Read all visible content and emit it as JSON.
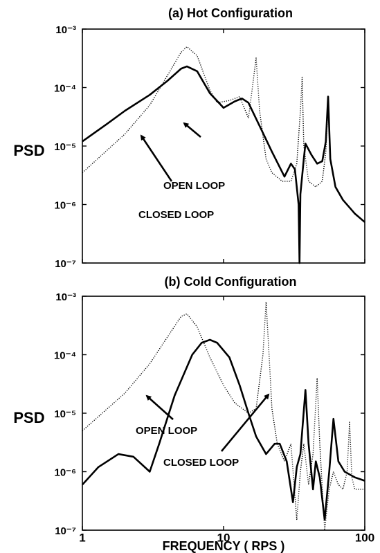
{
  "chart_data": [
    {
      "type": "line",
      "title": "(a)  Hot Configuration",
      "y_label": "PSD",
      "xlim": [
        1,
        100
      ],
      "ylim": [
        1e-07,
        0.001
      ],
      "xscale": "log",
      "yscale": "log",
      "xticks": [
        1,
        10,
        100
      ],
      "xtick_labels": false,
      "yticks": [
        {
          "value": 0.001,
          "label": "10⁻³"
        },
        {
          "value": 0.0001,
          "label": "10⁻⁴"
        },
        {
          "value": 1e-05,
          "label": "10⁻⁵"
        },
        {
          "value": 1e-06,
          "label": "10⁻⁶"
        },
        {
          "value": 1e-07,
          "label": "10⁻⁷"
        }
      ],
      "series": [
        {
          "name": "CLOSED LOOP",
          "color": "#000",
          "style": "solid",
          "x": [
            1,
            1.5,
            2,
            3,
            4,
            5,
            5.5,
            6.5,
            8,
            10,
            12,
            13.5,
            15,
            18,
            22,
            27,
            30,
            32,
            34,
            34.5,
            35,
            37,
            38,
            42,
            46,
            50,
            53,
            55,
            57,
            62,
            70,
            85,
            100
          ],
          "values": [
            1.2e-05,
            2.4e-05,
            4e-05,
            7.5e-05,
            0.00013,
            0.00021,
            0.00023,
            0.00019,
            8e-05,
            4.5e-05,
            5.8e-05,
            6.5e-05,
            5.5e-05,
            2.2e-05,
            8e-06,
            3e-06,
            5e-06,
            4e-06,
            1e-06,
            1e-07,
            1.5e-06,
            6e-06,
            1.1e-05,
            7e-06,
            5e-06,
            5.5e-06,
            1.2e-05,
            7e-05,
            6e-06,
            2e-06,
            1.2e-06,
            7e-07,
            5e-07
          ]
        },
        {
          "name": "OPEN LOOP",
          "color": "#000",
          "style": "dotted",
          "x": [
            1,
            2,
            3,
            4,
            5,
            5.5,
            6.5,
            8,
            9,
            11,
            13,
            15,
            16,
            17,
            18,
            20,
            22,
            26,
            30,
            33,
            35,
            36,
            37,
            40,
            45,
            50,
            53,
            55,
            57,
            62,
            70,
            85,
            100
          ],
          "values": [
            3.5e-06,
            1.6e-05,
            5e-05,
            0.00016,
            0.0004,
            0.0005,
            0.00035,
            9e-05,
            5.5e-05,
            6e-05,
            7e-05,
            3e-05,
            0.0001,
            0.00032,
            4e-05,
            6e-06,
            3.5e-06,
            2.5e-06,
            2.5e-06,
            5e-06,
            4e-05,
            0.00015,
            1e-05,
            2.5e-06,
            2e-06,
            2.5e-06,
            8e-06,
            5e-05,
            6e-06,
            2e-06,
            1.2e-06,
            7e-07,
            5e-07
          ]
        }
      ]
    },
    {
      "type": "line",
      "title": "(b)  Cold Configuration",
      "y_label": "PSD",
      "x_label": "FREQUENCY ( RPS )",
      "xlim": [
        1,
        100
      ],
      "ylim": [
        1e-07,
        0.001
      ],
      "xscale": "log",
      "yscale": "log",
      "xticks": [
        1,
        10,
        100
      ],
      "xtick_labels": true,
      "yticks": [
        {
          "value": 0.001,
          "label": "10⁻³"
        },
        {
          "value": 0.0001,
          "label": "10⁻⁴"
        },
        {
          "value": 1e-05,
          "label": "10⁻⁵"
        },
        {
          "value": 1e-06,
          "label": "10⁻⁶"
        },
        {
          "value": 1e-07,
          "label": "10⁻⁷"
        }
      ],
      "series": [
        {
          "name": "CLOSED LOOP",
          "color": "#000",
          "style": "solid",
          "x": [
            1,
            1.3,
            1.8,
            2.3,
            3,
            3.5,
            4.5,
            6,
            7,
            8,
            9,
            11,
            13,
            15,
            17,
            20,
            23,
            25,
            28,
            31,
            33,
            35,
            38,
            40,
            43,
            45,
            48,
            52,
            56,
            60,
            65,
            72,
            85,
            100
          ],
          "values": [
            6e-07,
            1.2e-06,
            2e-06,
            1.8e-06,
            1e-06,
            3e-06,
            2e-05,
            0.0001,
            0.00016,
            0.00018,
            0.00016,
            9e-05,
            3e-05,
            1e-05,
            4e-06,
            2e-06,
            3e-06,
            3e-06,
            1.5e-06,
            3e-07,
            1.2e-06,
            2e-06,
            2.5e-05,
            3e-06,
            5e-07,
            1.5e-06,
            8e-07,
            1.5e-07,
            1e-06,
            8e-06,
            1.5e-06,
            1e-06,
            8e-07,
            7e-07
          ]
        },
        {
          "name": "OPEN LOOP",
          "color": "#000",
          "style": "dotted",
          "x": [
            1,
            2,
            3,
            4,
            5,
            5.5,
            6.5,
            8,
            10,
            12,
            15,
            17,
            19,
            20,
            21,
            22,
            24,
            27,
            30,
            33,
            35,
            37,
            40,
            43,
            46,
            48,
            52,
            56,
            60,
            65,
            70,
            75,
            78,
            81,
            85,
            100
          ],
          "values": [
            5e-06,
            2.2e-05,
            7e-05,
            0.0002,
            0.00045,
            0.0005,
            0.0003,
            9e-05,
            3e-05,
            1.5e-05,
            1e-05,
            1.2e-05,
            0.0001,
            0.0008,
            0.0001,
            1.2e-05,
            3e-06,
            1.5e-06,
            3e-06,
            1.5e-07,
            1e-06,
            3e-06,
            6e-07,
            2e-06,
            4e-05,
            3e-06,
            1e-07,
            5e-07,
            1e-06,
            6e-07,
            5e-07,
            1e-06,
            7e-06,
            8e-07,
            5e-07,
            5e-07
          ]
        }
      ]
    }
  ]
}
